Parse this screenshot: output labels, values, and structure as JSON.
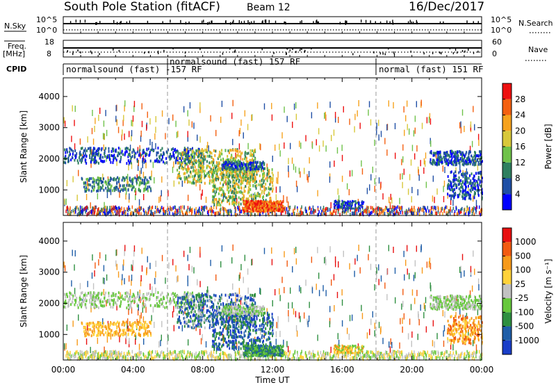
{
  "header": {
    "station": "South Pole Station (fitACF)",
    "beam": "Beam 12",
    "date": "16/Dec/2017"
  },
  "panels": {
    "nsky_label": "N.Sky",
    "nsky_ticks": [
      "10^5",
      "10^0"
    ],
    "nsearch_label": "N.Search",
    "nsearch_ticks": [
      "10^5",
      "10^0"
    ],
    "freq_label": "Freq.",
    "freq_unit": "[MHz]",
    "freq_ticks": [
      "18",
      "8"
    ],
    "nave_label": "Nave",
    "nave_ticks": [
      "60",
      "0"
    ],
    "cpid_label": "CPID",
    "cpid_segments": [
      {
        "text": "normalsound (fast) -157 RF"
      },
      {
        "text": "normalsound (fast) 157 RF"
      },
      {
        "text": "normal (fast) 151 RF"
      }
    ]
  },
  "chart_data": [
    {
      "type": "heatmap",
      "title": "",
      "xlabel": "",
      "ylabel": "Slant Range [km]",
      "y_ticks": [
        "4000",
        "3000",
        "2000",
        "1000"
      ],
      "ylim": [
        180,
        4600
      ],
      "colorbar_label": "Power [dB]",
      "colorbar_ticks": [
        "28",
        "24",
        "20",
        "16",
        "12",
        "8",
        "4"
      ],
      "colors": [
        "#0000ff",
        "#1f4fa5",
        "#2e7f5f",
        "#6fc24a",
        "#d8c83a",
        "#f6a21e",
        "#f46010",
        "#ee1010"
      ]
    },
    {
      "type": "heatmap",
      "title": "",
      "xlabel": "Time UT",
      "ylabel": "Slant Range [km]",
      "x_ticks": [
        "00:00",
        "04:00",
        "08:00",
        "12:00",
        "16:00",
        "20:00",
        "00:00"
      ],
      "y_ticks": [
        "4000",
        "3000",
        "2000",
        "1000"
      ],
      "ylim": [
        180,
        4600
      ],
      "colorbar_label": "Velocity [m s⁻¹]",
      "colorbar_ticks": [
        "1000",
        "500",
        "100",
        "25",
        "-25",
        "-100",
        "-500",
        "-1000"
      ],
      "colors": [
        "#1a3ec8",
        "#1f5ea8",
        "#2e8f40",
        "#66c83c",
        "#c2c2c2",
        "#ffd23a",
        "#f79a1a",
        "#f25a10",
        "#e81010"
      ]
    }
  ]
}
